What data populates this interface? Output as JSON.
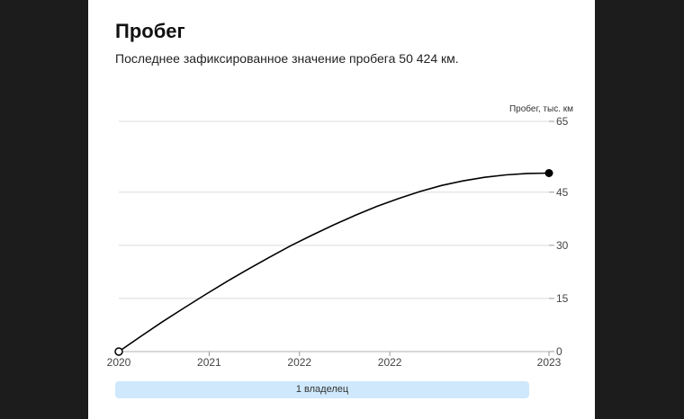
{
  "header": {
    "title": "Пробег",
    "subtitle": "Последнее зафиксированное значение пробега 50 424 км."
  },
  "chart_data": {
    "type": "line",
    "ylabel": "Пробег, тыс. км",
    "ylim": [
      0,
      65
    ],
    "yticks": [
      0,
      15,
      30,
      45,
      65
    ],
    "x_tick_labels": [
      "2020",
      "2021",
      "2022",
      "2022",
      "2023"
    ],
    "series": [
      {
        "values": [
          {
            "x": 0.0,
            "y": 0
          },
          {
            "x": 0.05,
            "y": 4.2
          },
          {
            "x": 0.1,
            "y": 8.3
          },
          {
            "x": 0.15,
            "y": 12.2
          },
          {
            "x": 0.2,
            "y": 16.0
          },
          {
            "x": 0.25,
            "y": 19.7
          },
          {
            "x": 0.3,
            "y": 23.2
          },
          {
            "x": 0.35,
            "y": 26.6
          },
          {
            "x": 0.4,
            "y": 29.9
          },
          {
            "x": 0.45,
            "y": 32.9
          },
          {
            "x": 0.5,
            "y": 35.8
          },
          {
            "x": 0.55,
            "y": 38.5
          },
          {
            "x": 0.6,
            "y": 41.0
          },
          {
            "x": 0.65,
            "y": 43.2
          },
          {
            "x": 0.7,
            "y": 45.2
          },
          {
            "x": 0.75,
            "y": 46.9
          },
          {
            "x": 0.8,
            "y": 48.2
          },
          {
            "x": 0.85,
            "y": 49.2
          },
          {
            "x": 0.9,
            "y": 49.9
          },
          {
            "x": 0.95,
            "y": 50.3
          },
          {
            "x": 1.0,
            "y": 50.4
          }
        ]
      }
    ],
    "grid": true,
    "start_marker": "hollow",
    "end_marker": "filled"
  },
  "owners": {
    "label": "1 владелец"
  }
}
